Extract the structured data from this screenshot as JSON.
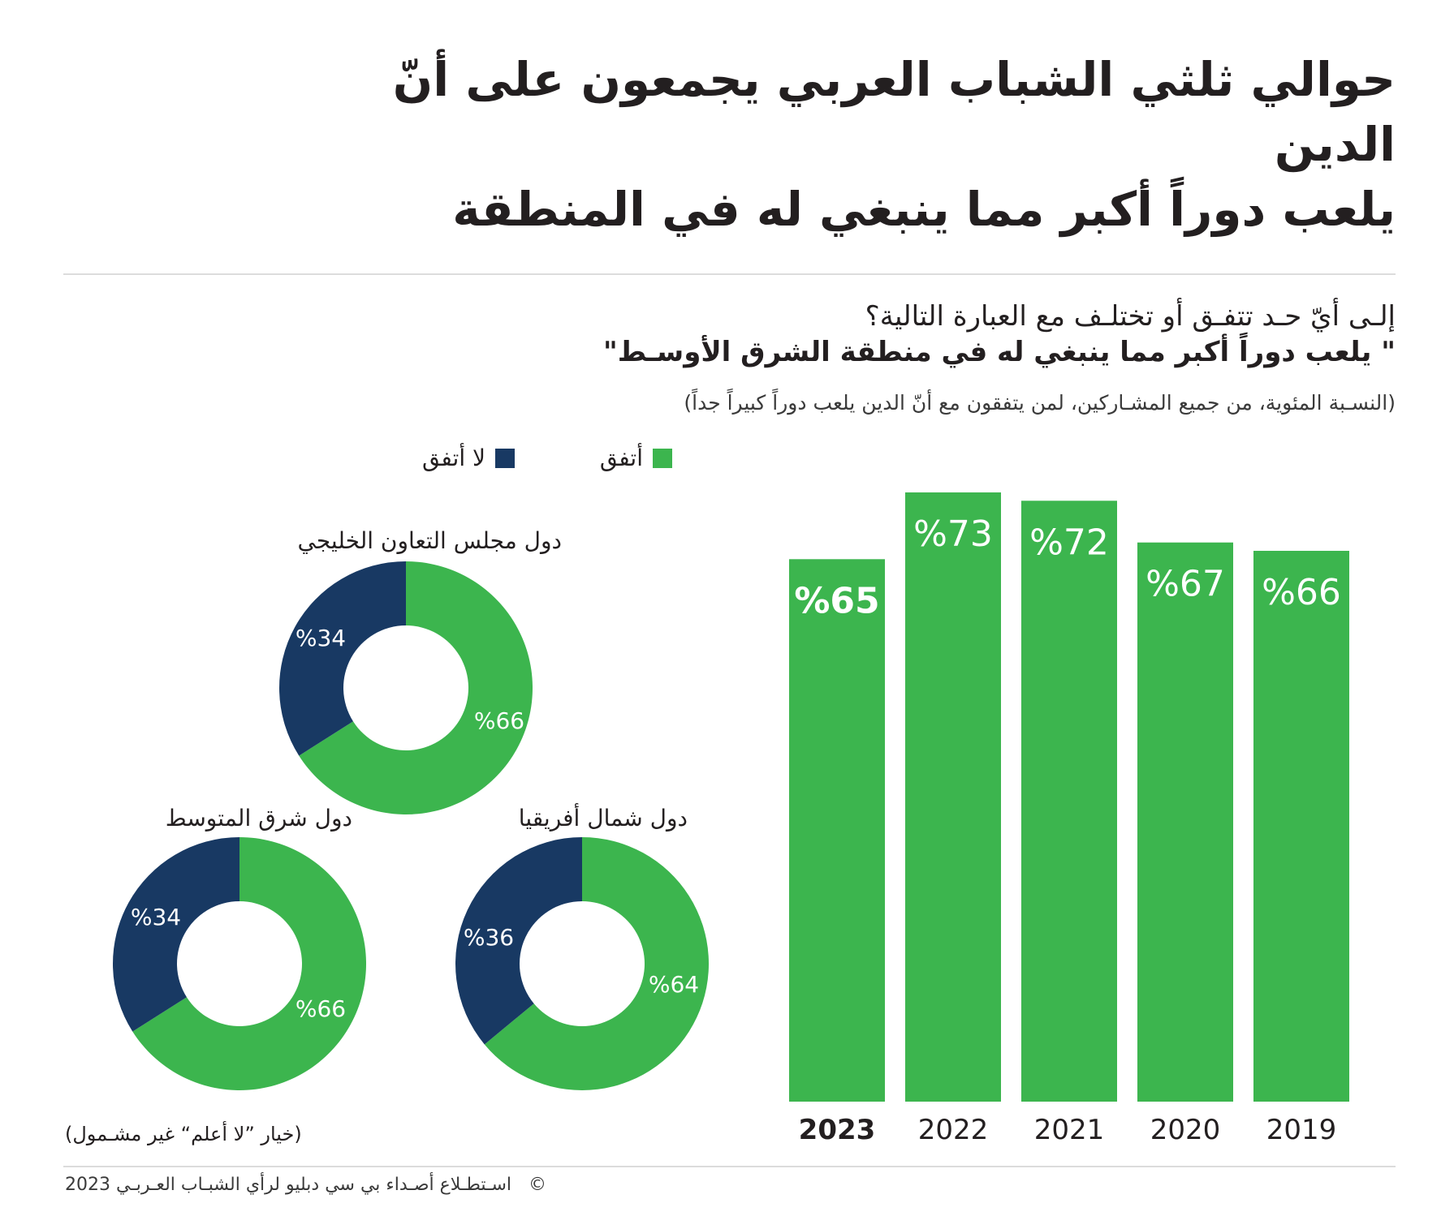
{
  "header": {
    "title_line1": "حوالي ثلثي الشباب العربي يجمعون على أنّ الدين",
    "title_line2": "يلعب دوراً أكبر مما ينبغي له في المنطقة"
  },
  "question": {
    "text": "إلـى أيّ حـد تتفـق أو تختلـف مع العبارة التالية؟",
    "statement": "\" يلعب دوراً أكبر مما ينبغي له في منطقة الشرق الأوسـط\"",
    "subnote": "(النسـبة المئوية، من جميع المشـاركين، لمن يتفقون مع أنّ الدين يلعب دوراً كبيراً جداً)"
  },
  "legend": {
    "agree": "أتفق",
    "disagree": "لا أتفق"
  },
  "colors": {
    "agree": "#3cb54e",
    "disagree": "#183963",
    "text": "#231f20",
    "label_on_bar": "#ffffff"
  },
  "chart_data": [
    {
      "type": "bar",
      "title": "",
      "categories": [
        "2023",
        "2022",
        "2021",
        "2020",
        "2019"
      ],
      "values": [
        65,
        73,
        72,
        67,
        66
      ],
      "labels": [
        "%65",
        "%73",
        "%72",
        "%67",
        "%66"
      ],
      "highlight_category": "2023",
      "xlabel": "",
      "ylabel": "",
      "ylim": [
        0,
        73
      ],
      "grid": false,
      "series_name": "أتفق"
    },
    {
      "type": "pie",
      "variant": "donut",
      "title": "دول مجلس التعاون الخليجي",
      "slices": [
        {
          "name": "أتفق",
          "value": 66,
          "label": "%66"
        },
        {
          "name": "لا أتفق",
          "value": 34,
          "label": "%34"
        }
      ]
    },
    {
      "type": "pie",
      "variant": "donut",
      "title": "دول شمال أفريقيا",
      "slices": [
        {
          "name": "أتفق",
          "value": 64,
          "label": "%64"
        },
        {
          "name": "لا أتفق",
          "value": 36,
          "label": "%36"
        }
      ]
    },
    {
      "type": "pie",
      "variant": "donut",
      "title": "دول شرق المتوسط",
      "slices": [
        {
          "name": "أتفق",
          "value": 66,
          "label": "%66"
        },
        {
          "name": "لا أتفق",
          "value": 34,
          "label": "%34"
        }
      ]
    }
  ],
  "note": "(خيار ”لا أعلم“ غير مشـمول)",
  "footer": {
    "copyright_symbol": "©",
    "text": "اسـتطـلاع أصـداء بي سي دبليو لرأي الشبـاب العـربـي 2023"
  }
}
